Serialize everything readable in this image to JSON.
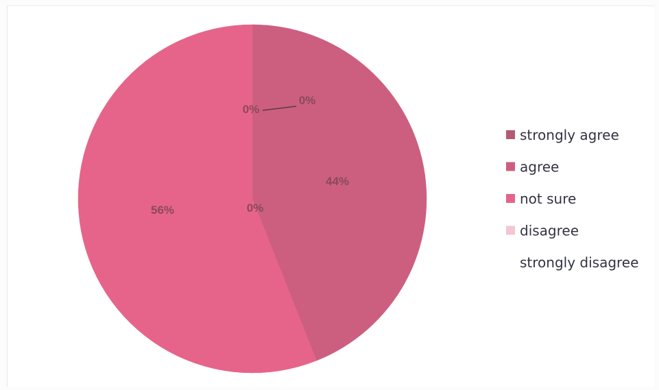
{
  "chart_data": {
    "type": "pie",
    "categories": [
      "strongly agree",
      "agree",
      "not sure",
      "disagree",
      "strongly disagree"
    ],
    "values": [
      0,
      44,
      56,
      0,
      0
    ],
    "data_labels": [
      "0%",
      "44%",
      "56%",
      "0%",
      "0%"
    ],
    "colors": [
      "#b55a75",
      "#cc5f80",
      "#e6648a",
      "#f2c6d2",
      "#ffffff"
    ],
    "legend_position": "right"
  }
}
